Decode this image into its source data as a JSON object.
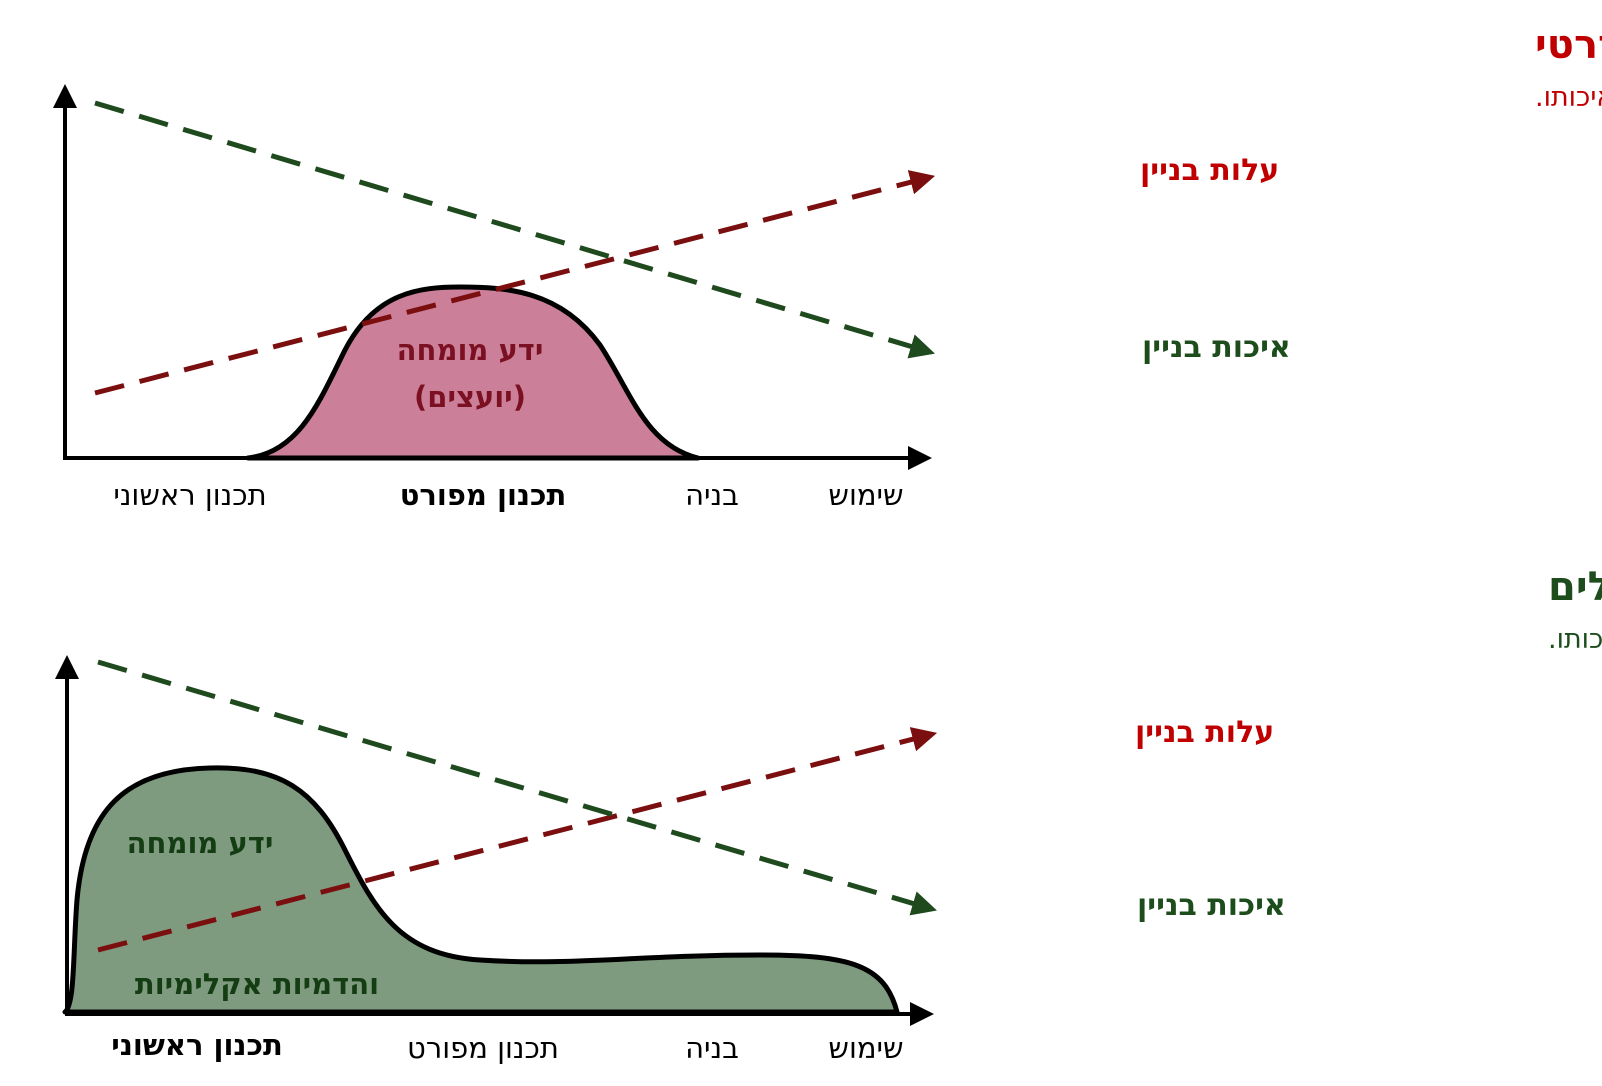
{
  "colors": {
    "red_title": "#c00000",
    "green_title": "#1d4d1d",
    "cost_line": "#7b0f0f",
    "quality_line": "#1e4a1e",
    "blob_standard": "#cc7f98",
    "blob_standard_text": "#7a1022",
    "blob_eco": "#7f9b7f",
    "blob_eco_text": "#143d14"
  },
  "panels": [
    {
      "title": "תהליך סטנדרטי",
      "subtitle": "שילוב ידע מומחה (יועצים) בשלב תכנון מפורט, מעלה את עלות הבניין ומפיחת את איכותו.",
      "cost_label": "עלות בניין",
      "quality_label": "איכות בניין",
      "blob_line1": "ידע מומחה",
      "blob_line2": "(יועצים)",
      "phases": [
        "תכנון ראשוני",
        "תכנון מפורט",
        "בניה",
        "שימוש"
      ],
      "highlight_phase_index": 1
    },
    {
      "title": "תהליך אקו אדריכלים",
      "subtitle": "שילוב ידע מומחה (עצמי) עוד בשלב התכנון הראשוני, מוריד את עלות הבניין ומעלה את איכותו.",
      "cost_label": "עלות בניין",
      "quality_label": "איכות בניין",
      "blob_line1": "ידע מומחה",
      "blob_line2": "והדמיות אקלימיות",
      "phases": [
        "תכנון ראשוני",
        "תכנון מפורט",
        "בניה",
        "שימוש"
      ],
      "highlight_phase_index": 0
    }
  ]
}
